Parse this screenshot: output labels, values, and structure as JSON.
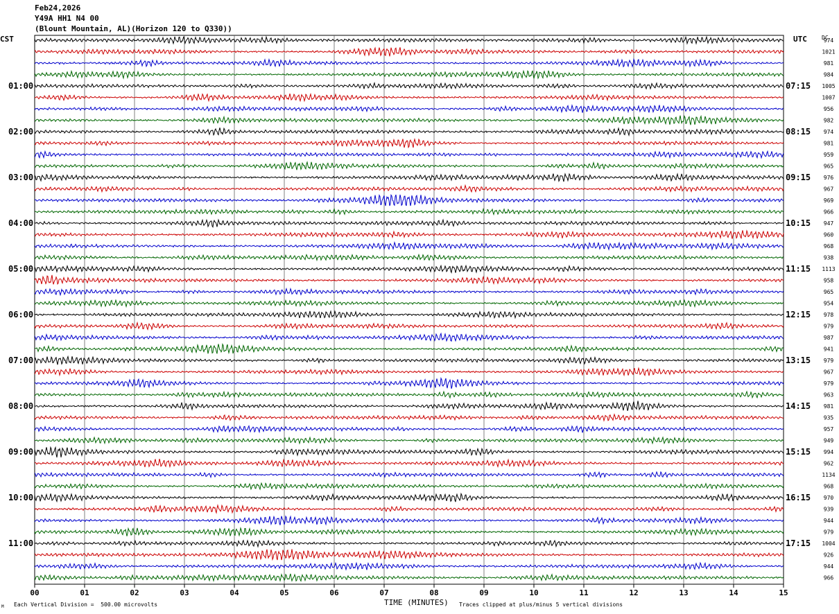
{
  "header": {
    "date": "Feb24,2026",
    "station": "Y49A HH1 N4 00",
    "location": "(Blount Mountain, AL)(Horizon 120 to Q330))"
  },
  "left_tz": "CST",
  "right_tz": "UTC",
  "dc_header": "DC",
  "footer": {
    "scale": "Each Vertical Division =  500.00 microvolts",
    "xlabel": "TIME (MINUTES)",
    "clip_note": "Traces clipped at plus/minus 5 vertical divisions",
    "corner_mark": "M"
  },
  "chart_data": {
    "type": "line",
    "title": "Y49A HH1 N4 00",
    "xlabel": "TIME (MINUTES)",
    "x_ticks": [
      "00",
      "01",
      "02",
      "03",
      "04",
      "05",
      "06",
      "07",
      "08",
      "09",
      "10",
      "11",
      "12",
      "13",
      "14",
      "15"
    ],
    "xlim": [
      0,
      15
    ],
    "grid": true,
    "trace_count": 48,
    "trace_colors": [
      "#000000",
      "#cc0000",
      "#0000cc",
      "#006600"
    ],
    "left_hour_labels": [
      {
        "trace": 4,
        "label": "01:00"
      },
      {
        "trace": 8,
        "label": "02:00"
      },
      {
        "trace": 12,
        "label": "03:00"
      },
      {
        "trace": 16,
        "label": "04:00"
      },
      {
        "trace": 20,
        "label": "05:00"
      },
      {
        "trace": 24,
        "label": "06:00"
      },
      {
        "trace": 28,
        "label": "07:00"
      },
      {
        "trace": 32,
        "label": "08:00"
      },
      {
        "trace": 36,
        "label": "09:00"
      },
      {
        "trace": 40,
        "label": "10:00"
      },
      {
        "trace": 44,
        "label": "11:00"
      }
    ],
    "right_hour_labels": [
      {
        "trace": 4,
        "label": "07:15"
      },
      {
        "trace": 8,
        "label": "08:15"
      },
      {
        "trace": 12,
        "label": "09:15"
      },
      {
        "trace": 16,
        "label": "10:15"
      },
      {
        "trace": 20,
        "label": "11:15"
      },
      {
        "trace": 24,
        "label": "12:15"
      },
      {
        "trace": 28,
        "label": "13:15"
      },
      {
        "trace": 32,
        "label": "14:15"
      },
      {
        "trace": 36,
        "label": "15:15"
      },
      {
        "trace": 40,
        "label": "16:15"
      },
      {
        "trace": 44,
        "label": "17:15"
      }
    ],
    "dc_values": [
      "974",
      "1021",
      "981",
      "984",
      "1005",
      "1007",
      "956",
      "982",
      "974",
      "981",
      "959",
      "965",
      "976",
      "967",
      "969",
      "966",
      "947",
      "960",
      "968",
      "938",
      "1113",
      "958",
      "965",
      "954",
      "978",
      "979",
      "987",
      "941",
      "979",
      "967",
      "979",
      "963",
      "981",
      "935",
      "957",
      "949",
      "994",
      "962",
      "1134",
      "968",
      "970",
      "939",
      "944",
      "979",
      "1004",
      "926",
      "944",
      "966"
    ]
  }
}
